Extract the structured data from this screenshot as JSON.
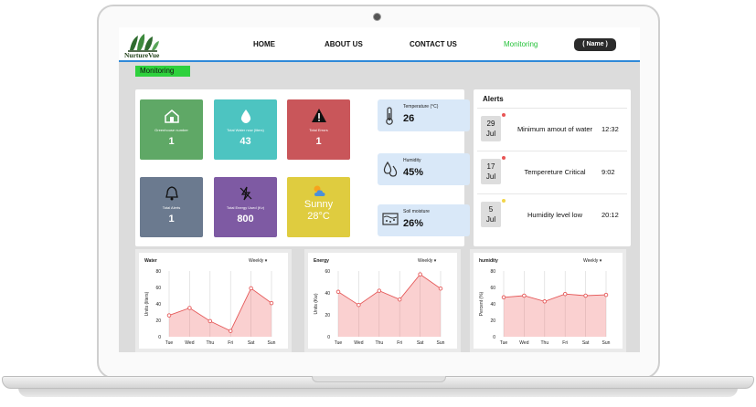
{
  "app": {
    "brand": "NurtureVue",
    "nav": [
      "HOME",
      "ABOUT US",
      "CONTACT US",
      "Monitoring"
    ],
    "active_nav": "Monitoring",
    "user_button": "( Name )",
    "page_label": "Monitoring"
  },
  "cards": [
    {
      "label": "Greenhouse number",
      "value": "1",
      "icon": "greenhouse-icon",
      "color": "#5fa866"
    },
    {
      "label": "Total Water now (liters)",
      "value": "43",
      "icon": "water-drop-icon",
      "color": "#4dc4c1"
    },
    {
      "label": "Total Errors",
      "value": "1",
      "icon": "warning-icon",
      "color": "#c9565a"
    },
    {
      "label": "Total Alerts",
      "value": "1",
      "icon": "bell-icon",
      "color": "#6b7a8f"
    },
    {
      "label": "Total Energy Used (Kv)",
      "value": "800",
      "icon": "energy-off-icon",
      "color": "#7e5aa3"
    },
    {
      "label": "",
      "value": "Sunny",
      "value2": "28°C",
      "icon": "sun-cloud-icon",
      "color": "#dfcc3f"
    }
  ],
  "sensors": [
    {
      "label": "Temperature (°C)",
      "value": "26",
      "icon": "thermometer-icon"
    },
    {
      "label": "Humidity",
      "value": "45%",
      "icon": "humidity-drops-icon"
    },
    {
      "label": "Soil moisture",
      "value": "26%",
      "icon": "soil-icon"
    }
  ],
  "alerts": {
    "title": "Alerts",
    "items": [
      {
        "day": "29",
        "month": "Jul",
        "message": "Minimum amout of water",
        "time": "12:32",
        "dot": "#e85555"
      },
      {
        "day": "17",
        "month": "Jul",
        "message": "Tempereture Critical",
        "time": "9:02",
        "dot": "#e85555"
      },
      {
        "day": "5",
        "month": "Jul",
        "message": "Humidity level low",
        "time": "20:12",
        "dot": "#f2d54a"
      }
    ]
  },
  "chart_data": [
    {
      "type": "area",
      "title": "Water",
      "period": "Weekly",
      "ylabel": "Units (liters)",
      "x": [
        "Tue",
        "Wed",
        "Thu",
        "Fri",
        "Sat",
        "Sun"
      ],
      "values": [
        26,
        35,
        19,
        7,
        59,
        41
      ],
      "ylim": [
        0,
        80
      ],
      "yticks": [
        0,
        20,
        40,
        60,
        80
      ],
      "color": "#e55a5a"
    },
    {
      "type": "area",
      "title": "Energy",
      "period": "Weekly",
      "ylabel": "Units (Kw)",
      "x": [
        "Tue",
        "Wed",
        "Thu",
        "Fri",
        "Sat",
        "Sun"
      ],
      "values": [
        41,
        29,
        42,
        34,
        57,
        44
      ],
      "ylim": [
        0,
        60
      ],
      "yticks": [
        0,
        20,
        40,
        60
      ],
      "color": "#e55a5a"
    },
    {
      "type": "area",
      "title": "humidity",
      "period": "Weekly",
      "ylabel": "Percent (%)",
      "x": [
        "Tue",
        "Wed",
        "Thu",
        "Fri",
        "Sat",
        "Sun"
      ],
      "values": [
        48,
        50,
        43,
        52,
        50,
        51
      ],
      "ylim": [
        0,
        80
      ],
      "yticks": [
        0,
        20,
        40,
        60,
        80
      ],
      "color": "#e55a5a"
    }
  ]
}
